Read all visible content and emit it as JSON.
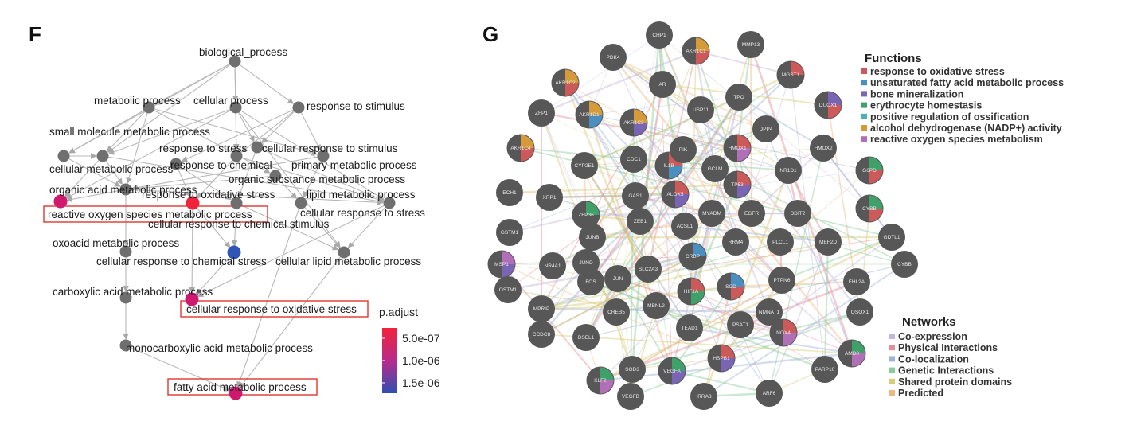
{
  "panel_f": {
    "letter": "F",
    "nodes": [
      {
        "id": "bp",
        "label": "biological_process",
        "color": "grey"
      },
      {
        "id": "mp",
        "label": "metabolic process",
        "color": "grey"
      },
      {
        "id": "cp",
        "label": "cellular process",
        "color": "grey"
      },
      {
        "id": "rs",
        "label": "response to stimulus",
        "color": "grey"
      },
      {
        "id": "smmp",
        "label": "small molecule metabolic process",
        "color": "grey"
      },
      {
        "id": "cmp",
        "label": "cellular metabolic process",
        "color": "grey"
      },
      {
        "id": "rts",
        "label": "response to stress",
        "color": "grey"
      },
      {
        "id": "crs",
        "label": "cellular response to stimulus",
        "color": "grey"
      },
      {
        "id": "rtc",
        "label": "response to chemical",
        "color": "grey"
      },
      {
        "id": "pmp",
        "label": "primary metabolic process",
        "color": "grey"
      },
      {
        "id": "osmp",
        "label": "organic substance metabolic process",
        "color": "grey"
      },
      {
        "id": "oamp",
        "label": "organic acid metabolic process",
        "color": "grey"
      },
      {
        "id": "rtos",
        "label": "response to oxidative stress",
        "color": "red"
      },
      {
        "id": "lmp",
        "label": "lipid metabolic process",
        "color": "grey"
      },
      {
        "id": "rosmp",
        "label": "reactive oxygen species metabolic process",
        "color": "magenta",
        "boxed": true
      },
      {
        "id": "crts",
        "label": "cellular response to stress",
        "color": "grey"
      },
      {
        "id": "crcs1",
        "label": "cellular response to chemical stimulus",
        "color": "grey"
      },
      {
        "id": "oxmp",
        "label": "oxoacid metabolic process",
        "color": "grey"
      },
      {
        "id": "crcs2",
        "label": "cellular response to chemical stress",
        "color": "blue"
      },
      {
        "id": "clmp",
        "label": "cellular lipid metabolic process",
        "color": "grey"
      },
      {
        "id": "camp",
        "label": "carboxylic acid metabolic process",
        "color": "grey"
      },
      {
        "id": "crtos",
        "label": "cellular response to oxidative stress",
        "color": "magenta",
        "boxed": true
      },
      {
        "id": "mcamp",
        "label": "monocarboxylic acid metabolic process",
        "color": "grey"
      },
      {
        "id": "famp",
        "label": "fatty acid metabolic process",
        "color": "magenta",
        "boxed": true
      }
    ],
    "colorbar": {
      "title": "p.adjust",
      "ticks": [
        "5.0e-07",
        "1.0e-06",
        "1.5e-06"
      ],
      "colors": {
        "high": "#ee2233",
        "mid": "#cc1f88",
        "low": "#3355bb",
        "grey": "#707070"
      }
    }
  },
  "panel_g": {
    "letter": "G",
    "functions": {
      "title": "Functions",
      "items": [
        {
          "label": "response to oxidative stress",
          "color": "#cc5a5a"
        },
        {
          "label": "unsaturated fatty acid metabolic process",
          "color": "#4a8fc0"
        },
        {
          "label": "bone mineralization",
          "color": "#7a64b4"
        },
        {
          "label": "erythrocyte homestasis",
          "color": "#3fa06a"
        },
        {
          "label": "positive regulation of ossification",
          "color": "#4bb3b0"
        },
        {
          "label": "alcohol dehydrogenase (NADP+) activity",
          "color": "#d59a3a"
        },
        {
          "label": "reactive oxygen species metabolism",
          "color": "#b16fb8"
        }
      ]
    },
    "networks": {
      "title": "Networks",
      "items": [
        {
          "label": "Co-expression",
          "color": "#c3b6dc"
        },
        {
          "label": "Physical Interactions",
          "color": "#e28f98"
        },
        {
          "label": "Co-localization",
          "color": "#9fb4d8"
        },
        {
          "label": "Genetic Interactions",
          "color": "#8ccc9c"
        },
        {
          "label": "Shared protein domains",
          "color": "#d8cc7a"
        },
        {
          "label": "Predicted",
          "color": "#efb782"
        }
      ]
    },
    "genes": [
      {
        "label": "CHP1"
      },
      {
        "label": "MMP13"
      },
      {
        "label": "PDK4"
      },
      {
        "label": "AKR1C1"
      },
      {
        "label": "MGST1"
      },
      {
        "label": "AKR1C2"
      },
      {
        "label": "AR"
      },
      {
        "label": "DUOX1"
      },
      {
        "label": "TPO"
      },
      {
        "label": "ZFP1"
      },
      {
        "label": "AKR1D1"
      },
      {
        "label": "AKR1C3"
      },
      {
        "label": "USP11"
      },
      {
        "label": "DPP4"
      },
      {
        "label": "HMOX1"
      },
      {
        "label": "HMOX2"
      },
      {
        "label": "AKR1C4"
      },
      {
        "label": "CYP2E1"
      },
      {
        "label": "CDC1"
      },
      {
        "label": "IL1B"
      },
      {
        "label": "PIK"
      },
      {
        "label": "GCLM"
      },
      {
        "label": "NR1D1"
      },
      {
        "label": "G6PD"
      },
      {
        "label": "ECH1"
      },
      {
        "label": "XRP1"
      },
      {
        "label": "GAS1"
      },
      {
        "label": "ALOX5"
      },
      {
        "label": "TP53"
      },
      {
        "label": "ZFP36"
      },
      {
        "label": "ZEB1"
      },
      {
        "label": "MYADM"
      },
      {
        "label": "EGFR"
      },
      {
        "label": "DDIT2"
      },
      {
        "label": "CYBB"
      },
      {
        "label": "GSTM1"
      },
      {
        "label": "JUNB"
      },
      {
        "label": "ACSL1"
      },
      {
        "label": "RRM4"
      },
      {
        "label": "PLCL1"
      },
      {
        "label": "MEF2D"
      },
      {
        "label": "GDTL1"
      },
      {
        "label": "MSP1"
      },
      {
        "label": "NR4A1"
      },
      {
        "label": "JUND"
      },
      {
        "label": "SLC2A3"
      },
      {
        "label": "CRBP"
      },
      {
        "label": "CYBB"
      },
      {
        "label": "OSTM1"
      },
      {
        "label": "FOS"
      },
      {
        "label": "JUN"
      },
      {
        "label": "HIF1A"
      },
      {
        "label": "SCD"
      },
      {
        "label": "PTPN6"
      },
      {
        "label": "FHL2A"
      },
      {
        "label": "MPRIP"
      },
      {
        "label": "CREB5"
      },
      {
        "label": "MBNL2"
      },
      {
        "label": "NMNAT1"
      },
      {
        "label": "QSOX1"
      },
      {
        "label": "TEAD1"
      },
      {
        "label": "PSAT1"
      },
      {
        "label": "NOX4"
      },
      {
        "label": "CCDC8"
      },
      {
        "label": "DSEL1"
      },
      {
        "label": "HSPB1"
      },
      {
        "label": "AMD8"
      },
      {
        "label": "SOD3"
      },
      {
        "label": "VEGFA"
      },
      {
        "label": "KLF2"
      },
      {
        "label": "PARP10"
      },
      {
        "label": "VEGFB"
      },
      {
        "label": "IRRA3"
      },
      {
        "label": "ARF6"
      }
    ]
  }
}
